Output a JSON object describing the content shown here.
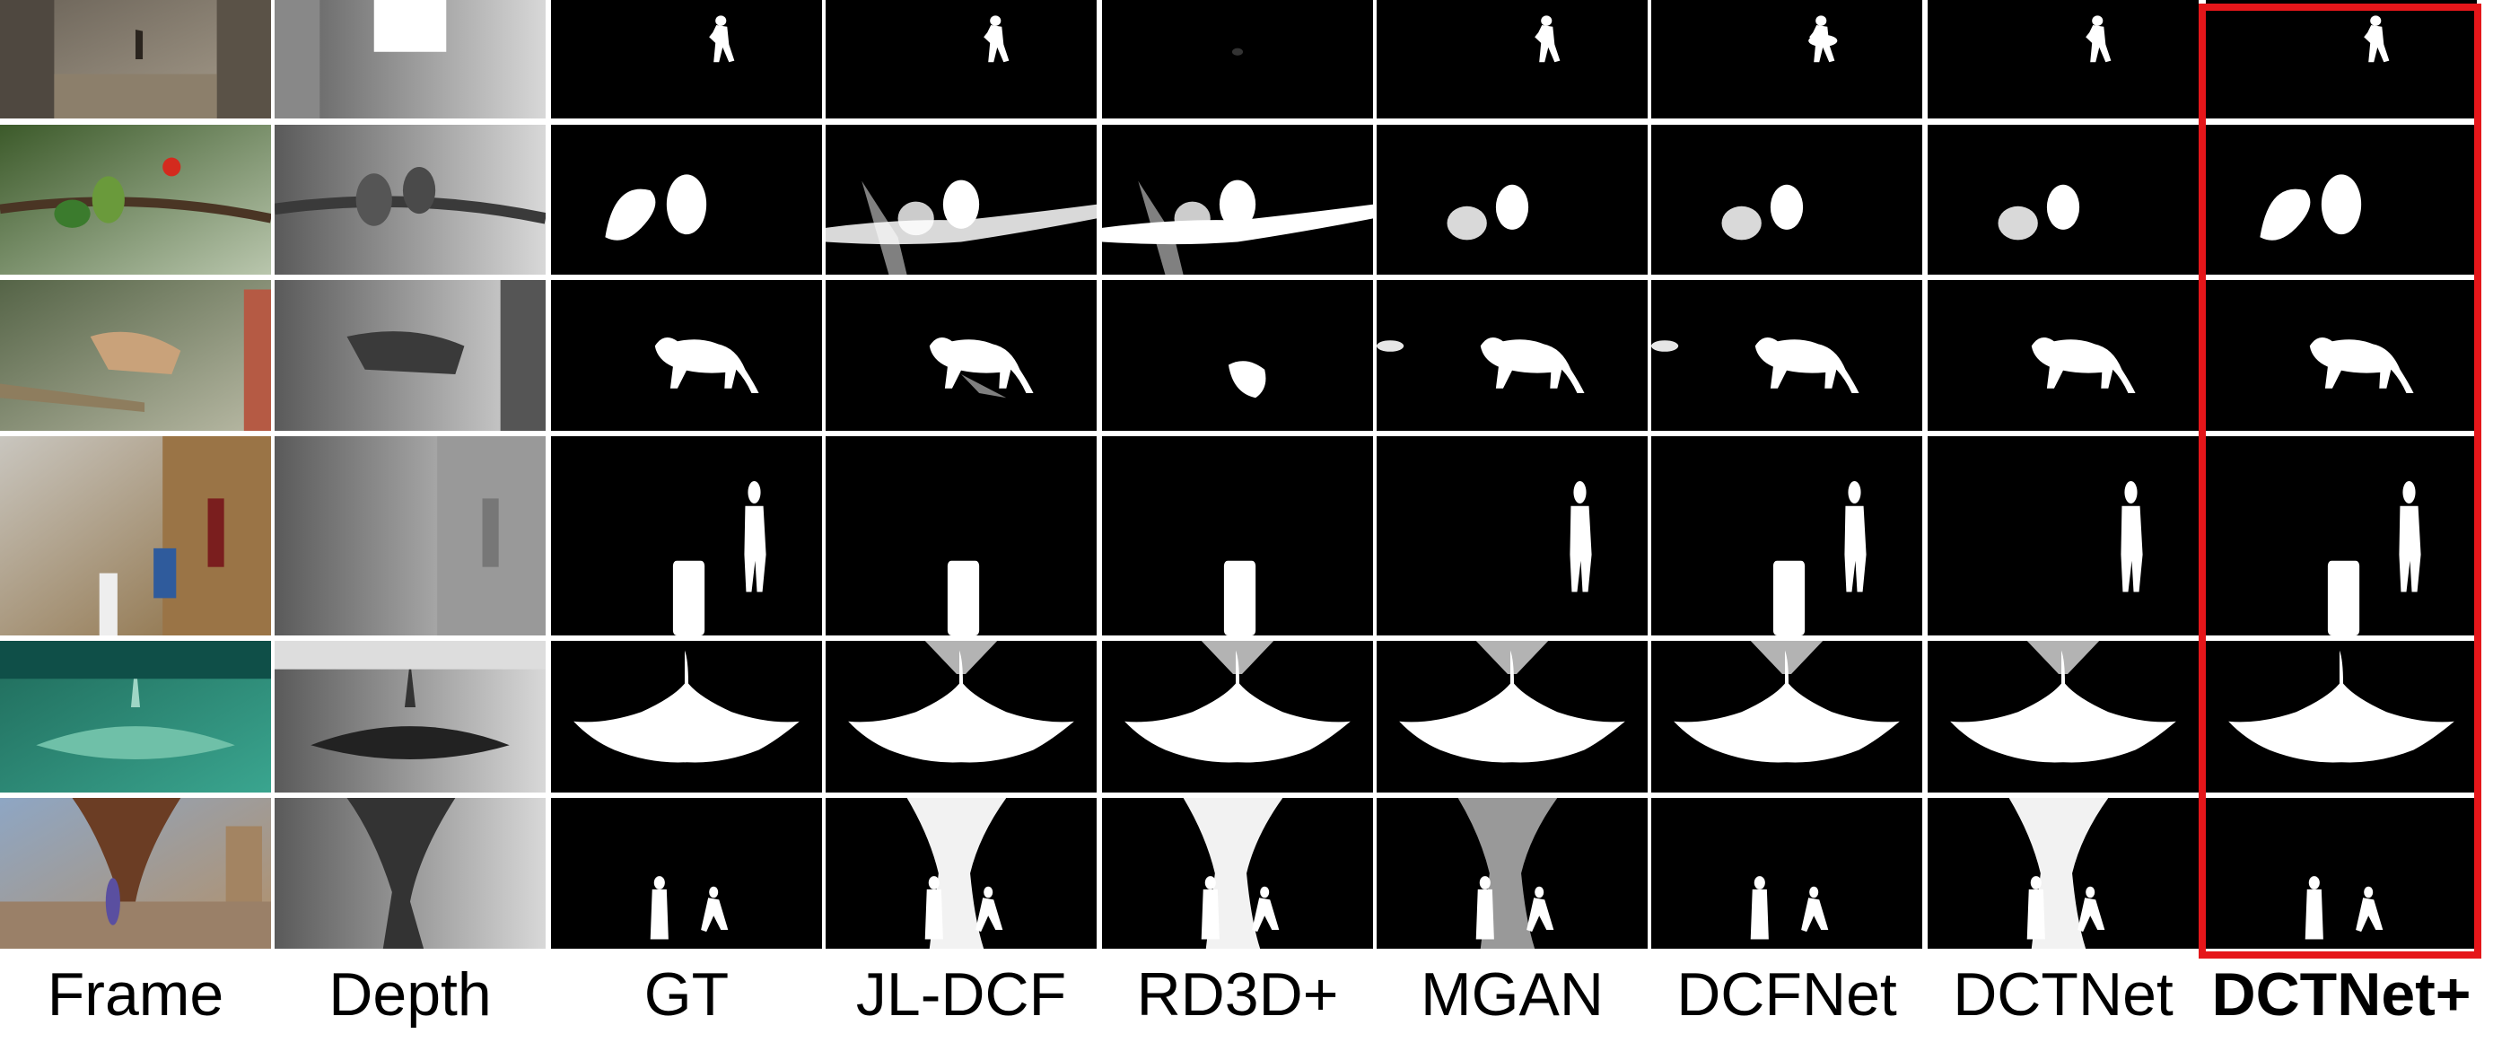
{
  "figure": {
    "columns": [
      {
        "key": "frame",
        "label": "Frame",
        "bold": false
      },
      {
        "key": "depth",
        "label": "Depth",
        "bold": false
      },
      {
        "key": "gt",
        "label": "GT",
        "bold": false
      },
      {
        "key": "jldcf",
        "label": "JL-DCF",
        "bold": false
      },
      {
        "key": "rd3d",
        "label": "RD3D+",
        "bold": false
      },
      {
        "key": "mgan",
        "label": "MGAN",
        "bold": false
      },
      {
        "key": "dcfnet",
        "label": "DCFNet",
        "bold": false
      },
      {
        "key": "dctnet",
        "label": "DCTNet",
        "bold": false
      },
      {
        "key": "dctnetplus",
        "label": "DCTNet+",
        "bold": true
      }
    ],
    "rows": [
      {
        "scene": "person-in-alley"
      },
      {
        "scene": "two-parrots"
      },
      {
        "scene": "walking-cat"
      },
      {
        "scene": "person-in-hallway"
      },
      {
        "scene": "sea-creature"
      },
      {
        "scene": "two-people-by-tree"
      }
    ],
    "highlight": {
      "column": "dctnetplus",
      "color": "#e5161a"
    }
  }
}
